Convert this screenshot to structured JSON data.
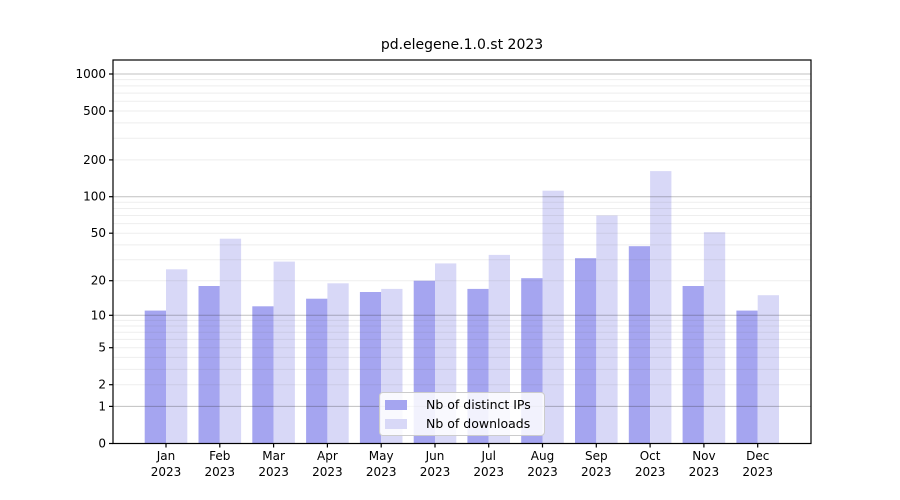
{
  "window": {
    "background": "#ffffff"
  },
  "chart_data": {
    "type": "bar",
    "title": "pd.elegene.1.0.st 2023",
    "categories": [
      {
        "month": "Jan",
        "year": "2023"
      },
      {
        "month": "Feb",
        "year": "2023"
      },
      {
        "month": "Mar",
        "year": "2023"
      },
      {
        "month": "Apr",
        "year": "2023"
      },
      {
        "month": "May",
        "year": "2023"
      },
      {
        "month": "Jun",
        "year": "2023"
      },
      {
        "month": "Jul",
        "year": "2023"
      },
      {
        "month": "Aug",
        "year": "2023"
      },
      {
        "month": "Sep",
        "year": "2023"
      },
      {
        "month": "Oct",
        "year": "2023"
      },
      {
        "month": "Nov",
        "year": "2023"
      },
      {
        "month": "Dec",
        "year": "2023"
      }
    ],
    "series": [
      {
        "name": "Nb of distinct IPs",
        "color": "#a5a5f0",
        "values": [
          11,
          18,
          12,
          14,
          16,
          20,
          17,
          21,
          31,
          39,
          18,
          11
        ]
      },
      {
        "name": "Nb of downloads",
        "color": "#d8d8f7",
        "values": [
          25,
          45,
          29,
          19,
          17,
          28,
          33,
          112,
          70,
          162,
          51,
          15
        ]
      }
    ],
    "y_scale": "log1p",
    "y_ticks": [
      0,
      1,
      2,
      5,
      10,
      20,
      50,
      100,
      200,
      500,
      1000
    ],
    "y_major_gridlines": [
      1,
      10,
      100,
      1000
    ],
    "ylim": [
      0,
      1300
    ],
    "xlabel": "",
    "ylabel": "",
    "grid": "major+minor horizontal",
    "legend_position": "lower center"
  },
  "colors": {
    "axis": "#000000",
    "grid_major": "#b8b8b8",
    "grid_minor": "#e9e9e9",
    "text": "#000000"
  }
}
